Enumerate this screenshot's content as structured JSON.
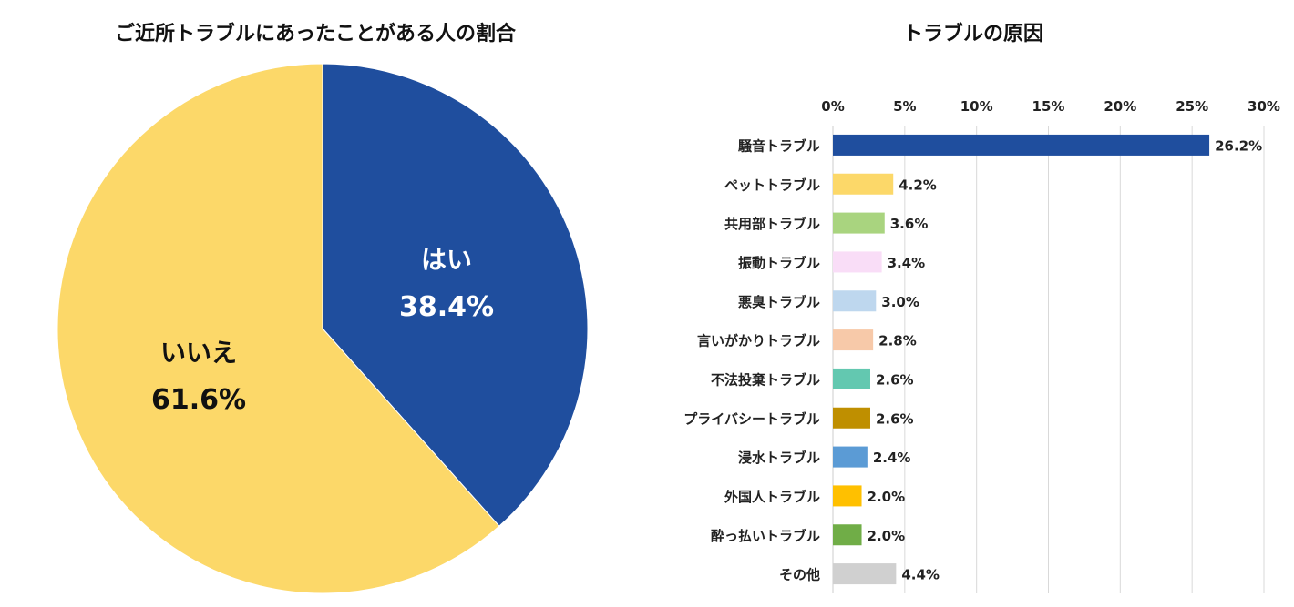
{
  "chart_data": [
    {
      "type": "pie",
      "title": "ご近所トラブルにあったことがある人の割合",
      "slices": [
        {
          "label": "はい",
          "value": 38.4,
          "value_label": "38.4%",
          "color": "#1F4E9E",
          "label_color": "#ffffff"
        },
        {
          "label": "いいえ",
          "value": 61.6,
          "value_label": "61.6%",
          "color": "#FCD869",
          "label_color": "#111111"
        }
      ]
    },
    {
      "type": "bar",
      "orientation": "horizontal",
      "title": "トラブルの原因",
      "xlim": [
        0,
        30
      ],
      "ticks": [
        0,
        5,
        10,
        15,
        20,
        25,
        30
      ],
      "tick_labels": [
        "0%",
        "5%",
        "10%",
        "15%",
        "20%",
        "25%",
        "30%"
      ],
      "grid": true,
      "x_axis_position": "top",
      "categories": [
        "騒音トラブル",
        "ペットトラブル",
        "共用部トラブル",
        "振動トラブル",
        "悪臭トラブル",
        "言いがかりトラブル",
        "不法投棄トラブル",
        "プライバシートラブル",
        "浸水トラブル",
        "外国人トラブル",
        "酔っ払いトラブル",
        "その他"
      ],
      "values": [
        26.2,
        4.2,
        3.6,
        3.4,
        3.0,
        2.8,
        2.6,
        2.6,
        2.4,
        2.0,
        2.0,
        4.4
      ],
      "value_labels": [
        "26.2%",
        "4.2%",
        "3.6%",
        "3.4%",
        "3.0%",
        "2.8%",
        "2.6%",
        "2.6%",
        "2.4%",
        "2.0%",
        "2.0%",
        "4.4%"
      ],
      "colors": [
        "#1F4E9E",
        "#FCD869",
        "#A9D47F",
        "#F9DDF7",
        "#BED7EE",
        "#F7C9A9",
        "#63C8B0",
        "#BF8F00",
        "#5B9BD5",
        "#FFC000",
        "#70AD47",
        "#D0D0D0"
      ]
    }
  ]
}
